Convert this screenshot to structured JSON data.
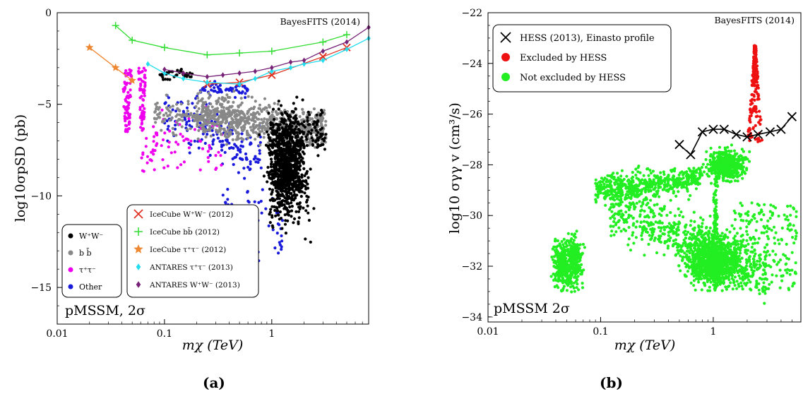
{
  "panels": [
    {
      "caption": "(a)",
      "corner_label": "BayesFITS (2014)",
      "region_label": "pMSSM, 2σ",
      "xlabel": "mχ (TeV)",
      "ylabel": "log10σpSD (pb)",
      "x_log": true,
      "xlim": [
        0.01,
        8
      ],
      "ylim": [
        -17,
        0
      ],
      "x_ticks": [
        {
          "v": 0.01,
          "label": "0.01"
        },
        {
          "v": 0.1,
          "label": "0.1"
        },
        {
          "v": 1,
          "label": "1"
        }
      ],
      "y_ticks": [
        {
          "v": 0,
          "label": "0"
        },
        {
          "v": -5,
          "label": "−5"
        },
        {
          "v": -10,
          "label": "−10"
        },
        {
          "v": -15,
          "label": "−15"
        }
      ],
      "legend_left": [
        {
          "label": "W⁺W⁻",
          "color": "#000000"
        },
        {
          "label": "b b̄",
          "color": "#888888"
        },
        {
          "label": "τ⁺τ⁻",
          "color": "#ee00ee"
        },
        {
          "label": "Other",
          "color": "#1a1adb"
        }
      ],
      "legend_right": [
        {
          "label": "IceCube W⁺W⁻ (2012)",
          "color": "#e03020",
          "marker": "x"
        },
        {
          "label": "IceCube bb̄ (2012)",
          "color": "#33dd33",
          "marker": "plus"
        },
        {
          "label": "IceCube τ⁺τ⁻ (2012)",
          "color": "#ee8833",
          "marker": "star"
        },
        {
          "label": "ANTARES τ⁺τ⁻ (2013)",
          "color": "#22ddee",
          "marker": "diamond"
        },
        {
          "label": "ANTARES W⁺W⁻ (2013)",
          "color": "#772277",
          "marker": "diamond"
        }
      ]
    },
    {
      "caption": "(b)",
      "corner_label": "BayesFITS (2014)",
      "region_label": "pMSSM 2σ",
      "xlabel": "mχ (TeV)",
      "ylabel": "log10 σγγ v (cm³/s)",
      "x_log": true,
      "xlim": [
        0.01,
        6
      ],
      "ylim": [
        -34.2,
        -22
      ],
      "x_ticks": [
        {
          "v": 0.01,
          "label": "0.01"
        },
        {
          "v": 0.1,
          "label": "0.1"
        },
        {
          "v": 1,
          "label": "1"
        }
      ],
      "y_ticks": [
        {
          "v": -22,
          "label": "−22"
        },
        {
          "v": -24,
          "label": "−24"
        },
        {
          "v": -26,
          "label": "−26"
        },
        {
          "v": -28,
          "label": "−28"
        },
        {
          "v": -30,
          "label": "−30"
        },
        {
          "v": -32,
          "label": "−32"
        },
        {
          "v": -34,
          "label": "−34"
        }
      ],
      "legend": [
        {
          "label": "HESS (2013), Einasto profile",
          "color": "#000000",
          "marker": "x"
        },
        {
          "label": "Excluded by HESS",
          "color": "#ee1111",
          "marker": "dot"
        },
        {
          "label": "Not excluded by HESS",
          "color": "#22ee22",
          "marker": "dot"
        }
      ]
    }
  ],
  "chart_data": [
    {
      "type": "scatter",
      "x_scale": "log",
      "xlim": [
        0.01,
        8
      ],
      "ylim": [
        -17,
        0
      ],
      "limit_curves": [
        {
          "name": "IceCube W⁺W⁻ (2012)",
          "color": "#e03020",
          "marker": "x",
          "x": [
            0.25,
            0.5,
            1,
            3,
            5
          ],
          "y": [
            -3.9,
            -3.8,
            -3.4,
            -2.4,
            -1.9
          ]
        },
        {
          "name": "IceCube bb̄ (2012)",
          "color": "#33dd33",
          "marker": "plus",
          "x": [
            0.035,
            0.05,
            0.1,
            0.25,
            0.5,
            1,
            3,
            5
          ],
          "y": [
            -0.7,
            -1.5,
            -1.9,
            -2.3,
            -2.2,
            -2.1,
            -1.6,
            -1.2
          ]
        },
        {
          "name": "IceCube τ⁺τ⁻ (2012)",
          "color": "#ee8833",
          "marker": "star",
          "x": [
            0.02,
            0.035,
            0.05
          ],
          "y": [
            -1.9,
            -3.0,
            -3.7
          ]
        },
        {
          "name": "ANTARES τ⁺τ⁻ (2013)",
          "color": "#22ddee",
          "marker": "diamond",
          "x": [
            0.07,
            0.1,
            0.15,
            0.25,
            0.5,
            0.7,
            1,
            1.5,
            2,
            3,
            5,
            8
          ],
          "y": [
            -2.8,
            -3.3,
            -3.6,
            -3.8,
            -3.9,
            -3.6,
            -3.2,
            -3.0,
            -2.8,
            -2.6,
            -2.0,
            -1.4
          ]
        },
        {
          "name": "ANTARES W⁺W⁻ (2013)",
          "color": "#772277",
          "marker": "diamond",
          "x": [
            0.1,
            0.15,
            0.25,
            0.35,
            0.5,
            0.7,
            1,
            1.5,
            2,
            3,
            5,
            8
          ],
          "y": [
            -3.1,
            -3.3,
            -3.5,
            -3.4,
            -3.3,
            -3.2,
            -3.0,
            -2.7,
            -2.6,
            -2.1,
            -1.6,
            -0.8
          ]
        }
      ],
      "scatter_series": [
        {
          "name": "W⁺W⁻",
          "color": "#000000"
        },
        {
          "name": "b b̄",
          "color": "#888888"
        },
        {
          "name": "τ⁺τ⁻",
          "color": "#ee00ee"
        },
        {
          "name": "Other",
          "color": "#1a1adb"
        }
      ]
    },
    {
      "type": "scatter",
      "x_scale": "log",
      "xlim": [
        0.01,
        6
      ],
      "ylim": [
        -34.2,
        -22
      ],
      "limit_curves": [
        {
          "name": "HESS (2013), Einasto profile",
          "color": "#000000",
          "marker": "x",
          "x": [
            0.5,
            0.63,
            0.8,
            1.0,
            1.25,
            1.6,
            2.0,
            2.5,
            3.2,
            4.0,
            5.0
          ],
          "y": [
            -27.2,
            -27.6,
            -26.7,
            -26.6,
            -26.6,
            -26.8,
            -26.9,
            -26.8,
            -26.7,
            -26.6,
            -26.1
          ]
        }
      ],
      "scatter_series": [
        {
          "name": "Excluded by HESS",
          "color": "#ee1111"
        },
        {
          "name": "Not excluded by HESS",
          "color": "#22ee22"
        }
      ]
    }
  ]
}
